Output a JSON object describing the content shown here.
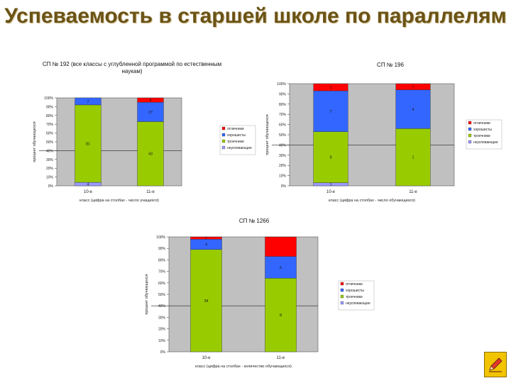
{
  "slide": {
    "title": "Успеваемость в старшей школе по параллелям"
  },
  "colors": {
    "plot_bg": "#c0c0c0",
    "red": "#ff0000",
    "blue": "#3366ff",
    "green": "#99cc00",
    "violet": "#9999ff",
    "nav": "#f2c400"
  },
  "nav_button": {
    "icon": "pencil-icon"
  },
  "chart_data": [
    {
      "type": "bar",
      "stacked": "percent",
      "title": "СП № 192 (все классы с углубленной программой по естественным наукам)",
      "ylabel": "процент обучающихся",
      "xlabel": "класс (цифра на столбах - число учащихся)",
      "ylim": [
        0,
        100
      ],
      "yticks": [
        "0%",
        "10%",
        "20%",
        "30%",
        "40%",
        "50%",
        "60%",
        "70%",
        "80%",
        "90%",
        "100%"
      ],
      "categories": [
        "10-е",
        "11-е"
      ],
      "legend_position": "right",
      "series": [
        {
          "name": "отличники",
          "color": "#ff0000",
          "values": [
            0,
            5
          ],
          "labels": [
            "",
            "4"
          ]
        },
        {
          "name": "хорошисты",
          "color": "#3366ff",
          "values": [
            8,
            22
          ],
          "labels": [
            "7",
            "27"
          ]
        },
        {
          "name": "троечники",
          "color": "#99cc00",
          "values": [
            88,
            73
          ],
          "labels": [
            "81",
            "43"
          ]
        },
        {
          "name": "неуспевающие",
          "color": "#9999ff",
          "values": [
            4,
            0
          ],
          "labels": [
            "4",
            "0"
          ]
        }
      ]
    },
    {
      "type": "bar",
      "stacked": "percent",
      "title": "СП № 196",
      "ylabel": "процент обучающихся",
      "xlabel": "класс (цифра на столбах - число обучающихся)",
      "ylim": [
        0,
        100
      ],
      "yticks": [
        "0%",
        "10%",
        "20%",
        "30%",
        "40%",
        "50%",
        "60%",
        "70%",
        "80%",
        "90%",
        "100%"
      ],
      "categories": [
        "10-е",
        "11-е"
      ],
      "legend_position": "right",
      "series": [
        {
          "name": "отличники",
          "color": "#ff0000",
          "values": [
            7,
            6
          ],
          "labels": [
            "1",
            "1"
          ]
        },
        {
          "name": "хорошисты",
          "color": "#3366ff",
          "values": [
            40,
            38
          ],
          "labels": [
            "7",
            "4"
          ]
        },
        {
          "name": "троечники",
          "color": "#99cc00",
          "values": [
            50,
            56
          ],
          "labels": [
            "9",
            "1"
          ]
        },
        {
          "name": "неуспевающие",
          "color": "#9999ff",
          "values": [
            3,
            0
          ],
          "labels": [
            "1",
            ""
          ]
        }
      ]
    },
    {
      "type": "bar",
      "stacked": "percent",
      "title": "СП № 1266",
      "ylabel": "процент обучающихся",
      "xlabel": "класс (цифра на столбах - количество обучающихся)",
      "ylim": [
        0,
        100
      ],
      "yticks": [
        "0%",
        "10%",
        "20%",
        "30%",
        "40%",
        "50%",
        "60%",
        "70%",
        "80%",
        "90%",
        "100%"
      ],
      "categories": [
        "10-е",
        "11-е"
      ],
      "legend_position": "right",
      "series": [
        {
          "name": "отличники",
          "color": "#ff0000",
          "values": [
            2,
            17
          ],
          "labels": [
            "1",
            ""
          ]
        },
        {
          "name": "хорошисты",
          "color": "#3366ff",
          "values": [
            9,
            19
          ],
          "labels": [
            "4",
            "5"
          ]
        },
        {
          "name": "троечники",
          "color": "#99cc00",
          "values": [
            89,
            64
          ],
          "labels": [
            "34",
            "8"
          ]
        },
        {
          "name": "неуспевающие",
          "color": "#9999ff",
          "values": [
            0,
            0
          ],
          "labels": [
            "",
            ""
          ]
        }
      ]
    }
  ]
}
